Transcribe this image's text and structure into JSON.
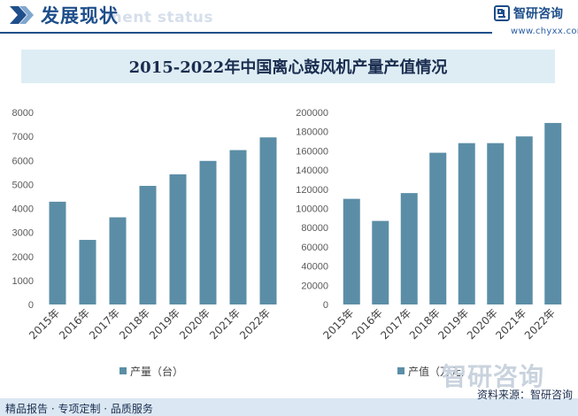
{
  "header": {
    "section_title": "发展现状",
    "watermark_text": "ment status",
    "logo_name": "智研咨询",
    "logo_url": "www.chyxx.com"
  },
  "colors": {
    "bar": "#5b8ea6",
    "header_accent": "#1f4f8b",
    "title_band": "#deedf4",
    "footer_band": "#dbe8f3"
  },
  "chart_data": [
    {
      "type": "bar",
      "title": "2015-2022年中国离心鼓风机产量产值情况",
      "categories": [
        "2015年",
        "2016年",
        "2017年",
        "2018年",
        "2019年",
        "2020年",
        "2021年",
        "2022年"
      ],
      "series": [
        {
          "name": "产量（台）",
          "values": [
            4280,
            2690,
            3630,
            4940,
            5420,
            5980,
            6430,
            6960
          ]
        }
      ],
      "ylim": [
        0,
        8000
      ],
      "yticks": [
        0,
        1000,
        2000,
        3000,
        4000,
        5000,
        6000,
        7000,
        8000
      ],
      "legend": "bottom",
      "grid": false
    },
    {
      "type": "bar",
      "categories": [
        "2015年",
        "2016年",
        "2017年",
        "2018年",
        "2019年",
        "2020年",
        "2021年",
        "2022年"
      ],
      "series": [
        {
          "name": "产值（万元）",
          "values": [
            110000,
            87000,
            116000,
            158000,
            168000,
            168000,
            175000,
            189000
          ]
        }
      ],
      "ylim": [
        0,
        200000
      ],
      "yticks": [
        0,
        20000,
        40000,
        60000,
        80000,
        100000,
        120000,
        140000,
        160000,
        180000,
        200000
      ],
      "legend": "bottom",
      "grid": false
    }
  ],
  "watermark": "智研咨询",
  "footer": {
    "left": "精品报告 · 专项定制 · 品质服务",
    "right": "资料来源：智研咨询"
  }
}
